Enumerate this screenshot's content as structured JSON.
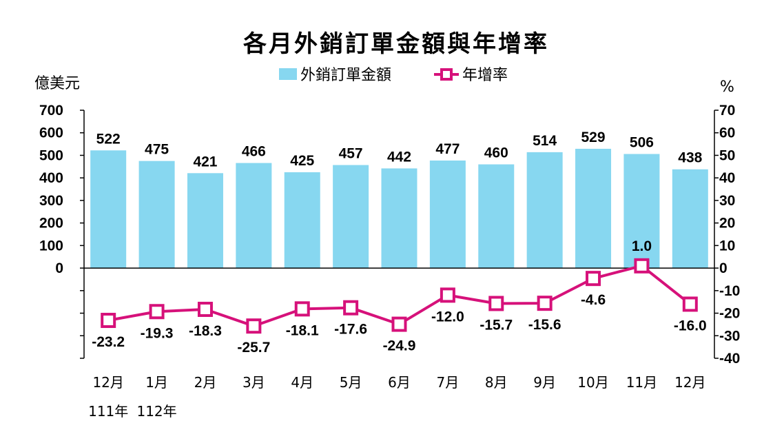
{
  "chart_data": {
    "type": "bar+line",
    "title": "各月外銷訂單金額與年增率",
    "categories": [
      "12月",
      "1月",
      "2月",
      "3月",
      "4月",
      "5月",
      "6月",
      "7月",
      "8月",
      "9月",
      "10月",
      "11月",
      "12月"
    ],
    "year_labels": [
      "111年",
      "112年"
    ],
    "left_axis": {
      "label": "億美元",
      "ticks": [
        "700",
        "600",
        "500",
        "400",
        "300",
        "200",
        "100",
        "0"
      ],
      "ylim": [
        -400,
        700
      ]
    },
    "right_axis": {
      "label": "%",
      "ticks": [
        "70",
        "60",
        "50",
        "40",
        "30",
        "20",
        "10",
        "0",
        "-10",
        "-20",
        "-30",
        "-40"
      ],
      "ylim": [
        -40,
        70
      ]
    },
    "series": [
      {
        "name": "外銷訂單金額",
        "type": "bar",
        "color": "#87d7f0",
        "values": [
          522,
          475,
          421,
          466,
          425,
          457,
          442,
          477,
          460,
          514,
          529,
          506,
          438
        ],
        "labels": [
          "522",
          "475",
          "421",
          "466",
          "425",
          "457",
          "442",
          "477",
          "460",
          "514",
          "529",
          "506",
          "438"
        ]
      },
      {
        "name": "年增率",
        "type": "line",
        "color": "#d6117a",
        "values": [
          -23.2,
          -19.3,
          -18.3,
          -25.7,
          -18.1,
          -17.6,
          -24.9,
          -12.0,
          -15.7,
          -15.6,
          -4.6,
          1.0,
          -16.0
        ],
        "labels": [
          "-23.2",
          "-19.3",
          "-18.3",
          "-25.7",
          "-18.1",
          "-17.6",
          "-24.9",
          "-12.0",
          "-15.7",
          "-15.6",
          "-4.6",
          "1.0",
          "-16.0"
        ]
      }
    ]
  }
}
